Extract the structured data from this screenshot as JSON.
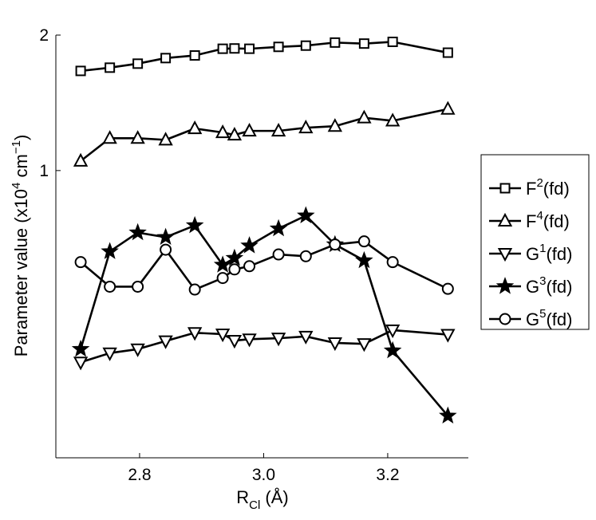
{
  "chart_data": {
    "type": "line",
    "xlabel": {
      "base": "R",
      "sub": "Cl",
      "unit": " (Å)"
    },
    "ylabel": {
      "pre": "Parameter value (x10",
      "sup": "4",
      "mid": " cm",
      "sup2": "−1",
      "post": ")"
    },
    "xlim": [
      2.665,
      3.33
    ],
    "ylim": [
      0.23,
      2.0
    ],
    "y_scale": "log",
    "x_ticks": [
      2.8,
      3.0,
      3.2
    ],
    "x_tick_labels": [
      "2.8",
      "3.0",
      "3.2"
    ],
    "y_ticks": [
      1,
      2
    ],
    "y_tick_labels": [
      "1",
      "2"
    ],
    "grid": false,
    "legend_position": "outside-right",
    "series": [
      {
        "name": "F",
        "sup": "2",
        "suffix": "(fd)",
        "marker": "square",
        "x": [
          2.705,
          2.752,
          2.797,
          2.842,
          2.889,
          2.934,
          2.953,
          2.977,
          3.024,
          3.068,
          3.115,
          3.162,
          3.208,
          3.297
        ],
        "y": [
          1.665,
          1.693,
          1.728,
          1.778,
          1.802,
          1.865,
          1.868,
          1.865,
          1.883,
          1.895,
          1.925,
          1.915,
          1.932,
          1.828
        ]
      },
      {
        "name": "F",
        "sup": "4",
        "suffix": "(fd)",
        "marker": "triangle-up",
        "x": [
          2.705,
          2.752,
          2.797,
          2.842,
          2.889,
          2.934,
          2.953,
          2.977,
          3.024,
          3.068,
          3.115,
          3.162,
          3.208,
          3.297
        ],
        "y": [
          1.05,
          1.18,
          1.18,
          1.17,
          1.24,
          1.215,
          1.2,
          1.225,
          1.225,
          1.245,
          1.255,
          1.31,
          1.29,
          1.37
        ]
      },
      {
        "name": "G",
        "sup": "1",
        "suffix": "(fd)",
        "marker": "triangle-down",
        "x": [
          2.705,
          2.752,
          2.797,
          2.842,
          2.889,
          2.934,
          2.953,
          2.977,
          3.024,
          3.068,
          3.115,
          3.162,
          3.208,
          3.297
        ],
        "y": [
          0.375,
          0.393,
          0.401,
          0.418,
          0.436,
          0.433,
          0.419,
          0.422,
          0.424,
          0.428,
          0.414,
          0.412,
          0.442,
          0.432
        ]
      },
      {
        "name": "G",
        "sup": "3",
        "suffix": "(fd)",
        "marker": "star",
        "x": [
          2.705,
          2.752,
          2.797,
          2.842,
          2.889,
          2.934,
          2.953,
          2.977,
          3.024,
          3.068,
          3.115,
          3.162,
          3.208,
          3.297
        ],
        "y": [
          0.401,
          0.661,
          0.728,
          0.711,
          0.755,
          0.617,
          0.639,
          0.681,
          0.743,
          0.794,
          0.685,
          0.631,
          0.398,
          0.285
        ]
      },
      {
        "name": "G",
        "sup": "5",
        "suffix": "(fd)",
        "marker": "circle",
        "x": [
          2.705,
          2.752,
          2.797,
          2.842,
          2.889,
          2.934,
          2.953,
          2.977,
          3.024,
          3.068,
          3.115,
          3.162,
          3.208,
          3.297
        ],
        "y": [
          0.626,
          0.552,
          0.552,
          0.667,
          0.544,
          0.577,
          0.603,
          0.613,
          0.651,
          0.645,
          0.685,
          0.696,
          0.626,
          0.546
        ]
      }
    ]
  }
}
